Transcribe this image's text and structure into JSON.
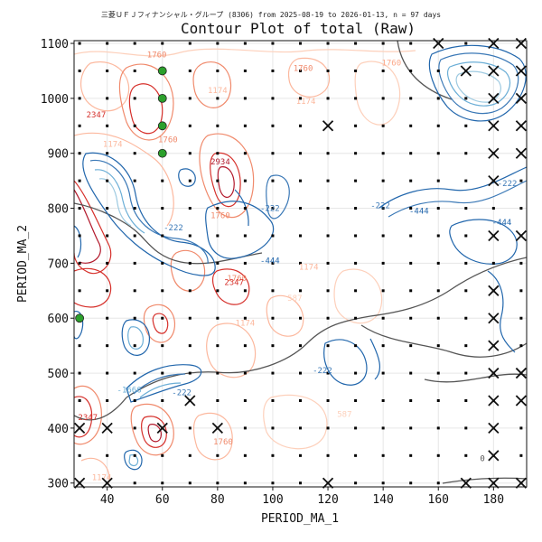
{
  "chart_data": {
    "type": "contour",
    "subtitle": "三菱ＵＦＪフィナンシャル・グループ (8306) from 2025-08-19 to 2026-01-13, n = 97 days",
    "title": "Contour Plot of total (Raw)",
    "xlabel": "PERIOD_MA_1",
    "ylabel": "PERIOD_MA_2",
    "xlim": [
      28,
      192
    ],
    "ylim": [
      293,
      1105
    ],
    "xticks": [
      "40",
      "60",
      "80",
      "100",
      "120",
      "140",
      "160",
      "180"
    ],
    "xtick_values": [
      40,
      60,
      80,
      100,
      120,
      140,
      160,
      180
    ],
    "yticks": [
      "300",
      "400",
      "500",
      "600",
      "700",
      "800",
      "900",
      "1000",
      "1100"
    ],
    "ytick_values": [
      300,
      400,
      500,
      600,
      700,
      800,
      900,
      1000,
      1100
    ],
    "grid": true,
    "contour_labels": [
      {
        "text": "1760",
        "x": 58,
        "y": 1075,
        "color": "#f08a6c"
      },
      {
        "text": "1760",
        "x": 111,
        "y": 1050,
        "color": "#f08a6c"
      },
      {
        "text": "1760",
        "x": 143,
        "y": 1060,
        "color": "#fca98a"
      },
      {
        "text": "1174",
        "x": 80,
        "y": 1010,
        "color": "#fcb89e"
      },
      {
        "text": "1174",
        "x": 112,
        "y": 990,
        "color": "#fcb89e"
      },
      {
        "text": "2347",
        "x": 36,
        "y": 965,
        "color": "#d6302b"
      },
      {
        "text": "1174",
        "x": 42,
        "y": 912,
        "color": "#fcb89e"
      },
      {
        "text": "1760",
        "x": 62,
        "y": 920,
        "color": "#f08a6c"
      },
      {
        "text": "2934",
        "x": 81,
        "y": 880,
        "color": "#b2182b"
      },
      {
        "text": "1760",
        "x": 81,
        "y": 782,
        "color": "#f08a6c"
      },
      {
        "text": "-222",
        "x": 99,
        "y": 795,
        "color": "#3a78b6"
      },
      {
        "text": "-222",
        "x": 64,
        "y": 760,
        "color": "#3a78b6"
      },
      {
        "text": "1174",
        "x": 113,
        "y": 688,
        "color": "#fcb89e"
      },
      {
        "text": "1760",
        "x": 87,
        "y": 668,
        "color": "#f08a6c"
      },
      {
        "text": "2347",
        "x": 86,
        "y": 660,
        "color": "#d6302b"
      },
      {
        "text": "587",
        "x": 108,
        "y": 632,
        "color": "#fdd0bb"
      },
      {
        "text": "-444",
        "x": 99,
        "y": 700,
        "color": "#2166ac"
      },
      {
        "text": "1174",
        "x": 90,
        "y": 586,
        "color": "#fcb89e"
      },
      {
        "text": "-222",
        "x": 118,
        "y": 500,
        "color": "#3a78b6"
      },
      {
        "text": "-222",
        "x": 67,
        "y": 460,
        "color": "#3a78b6"
      },
      {
        "text": "-1666",
        "x": 48,
        "y": 465,
        "color": "#6baed6"
      },
      {
        "text": "-222",
        "x": 139,
        "y": 800,
        "color": "#3a78b6"
      },
      {
        "text": "-444",
        "x": 153,
        "y": 790,
        "color": "#2166ac"
      },
      {
        "text": "-222",
        "x": 185,
        "y": 840,
        "color": "#3a78b6"
      },
      {
        "text": "-444",
        "x": 183,
        "y": 770,
        "color": "#2166ac"
      },
      {
        "text": "1760",
        "x": 82,
        "y": 370,
        "color": "#f08a6c"
      },
      {
        "text": "2347",
        "x": 33,
        "y": 415,
        "color": "#d6302b"
      },
      {
        "text": "1174",
        "x": 38,
        "y": 305,
        "color": "#fcb89e"
      },
      {
        "text": "587",
        "x": 126,
        "y": 420,
        "color": "#fdd0bb"
      },
      {
        "text": "0",
        "x": 176,
        "y": 340,
        "color": "#555555"
      }
    ],
    "markers_circle": [
      {
        "x": 60,
        "y": 1050
      },
      {
        "x": 60,
        "y": 1000
      },
      {
        "x": 60,
        "y": 950
      },
      {
        "x": 60,
        "y": 900
      },
      {
        "x": 30,
        "y": 600
      }
    ],
    "markers_x": [
      {
        "x": 160,
        "y": 1100
      },
      {
        "x": 180,
        "y": 1100
      },
      {
        "x": 190,
        "y": 1100
      },
      {
        "x": 170,
        "y": 1050
      },
      {
        "x": 180,
        "y": 1050
      },
      {
        "x": 190,
        "y": 1050
      },
      {
        "x": 180,
        "y": 1000
      },
      {
        "x": 190,
        "y": 1000
      },
      {
        "x": 120,
        "y": 950
      },
      {
        "x": 180,
        "y": 950
      },
      {
        "x": 190,
        "y": 950
      },
      {
        "x": 180,
        "y": 900
      },
      {
        "x": 190,
        "y": 900
      },
      {
        "x": 180,
        "y": 850
      },
      {
        "x": 180,
        "y": 750
      },
      {
        "x": 190,
        "y": 750
      },
      {
        "x": 180,
        "y": 650
      },
      {
        "x": 180,
        "y": 600
      },
      {
        "x": 180,
        "y": 550
      },
      {
        "x": 180,
        "y": 500
      },
      {
        "x": 190,
        "y": 500
      },
      {
        "x": 70,
        "y": 450
      },
      {
        "x": 180,
        "y": 450
      },
      {
        "x": 190,
        "y": 450
      },
      {
        "x": 30,
        "y": 400
      },
      {
        "x": 40,
        "y": 400
      },
      {
        "x": 60,
        "y": 400
      },
      {
        "x": 80,
        "y": 400
      },
      {
        "x": 180,
        "y": 400
      },
      {
        "x": 180,
        "y": 350
      },
      {
        "x": 30,
        "y": 300
      },
      {
        "x": 40,
        "y": 300
      },
      {
        "x": 120,
        "y": 300
      },
      {
        "x": 170,
        "y": 300
      },
      {
        "x": 180,
        "y": 300
      },
      {
        "x": 190,
        "y": 300
      }
    ],
    "grid_points": {
      "x_start": 30,
      "x_end": 190,
      "x_step": 10,
      "y_start": 300,
      "y_end": 1100,
      "y_step": 50
    },
    "colors": {
      "strong_red": "#b2182b",
      "red": "#d6302b",
      "mid_red": "#f08a6c",
      "light_red": "#fcb89e",
      "pale_red": "#fdd0bb",
      "zero": "#555555",
      "blue": "#2166ac",
      "mid_blue": "#3a78b6",
      "light_blue": "#6baed6",
      "pale_blue": "#9ecae1",
      "marker_green": "#2ca02c"
    }
  }
}
